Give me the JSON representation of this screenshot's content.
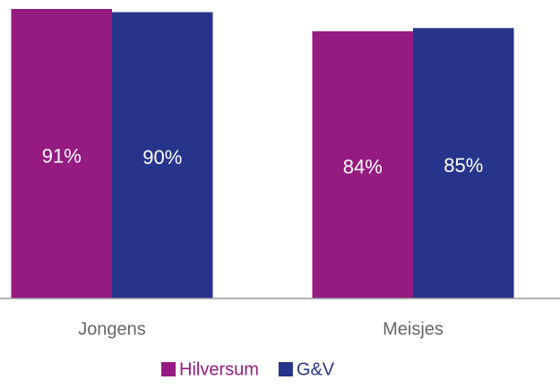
{
  "chart_data": {
    "type": "bar",
    "categories": [
      "Jongens",
      "Meisjes"
    ],
    "series": [
      {
        "name": "Hilversum",
        "color": "#951b81",
        "values": [
          91,
          84
        ],
        "value_labels": [
          "91%",
          "84%"
        ]
      },
      {
        "name": "G&V",
        "color": "#27348b",
        "values": [
          90,
          85
        ],
        "value_labels": [
          "90%",
          "85%"
        ]
      }
    ],
    "legend": "bottom"
  }
}
